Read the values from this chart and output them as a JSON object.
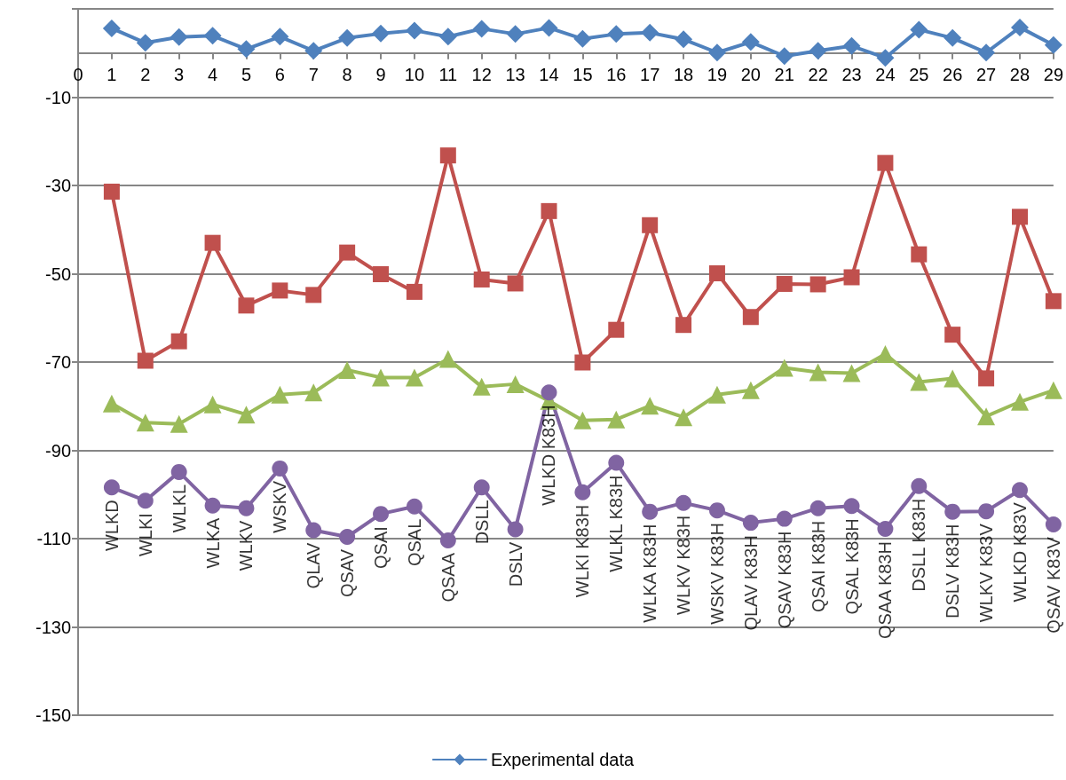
{
  "chart_data": {
    "type": "line",
    "x": [
      1,
      2,
      3,
      4,
      5,
      6,
      7,
      8,
      9,
      10,
      11,
      12,
      13,
      14,
      15,
      16,
      17,
      18,
      19,
      20,
      21,
      22,
      23,
      24,
      25,
      26,
      27,
      28,
      29
    ],
    "series": [
      {
        "name": "Experimental data",
        "color": "#4f81bd",
        "marker": "diamond",
        "values": [
          5.6,
          2.3,
          3.6,
          3.9,
          0.9,
          3.7,
          0.5,
          3.4,
          4.4,
          5.1,
          3.7,
          5.5,
          4.3,
          5.7,
          3.2,
          4.3,
          4.6,
          3.1,
          0.1,
          2.5,
          -0.7,
          0.5,
          1.6,
          -1.1,
          5.3,
          3.4,
          0.1,
          5.8,
          1.8
        ]
      },
      {
        "color": "#c0504d",
        "marker": "square",
        "values": [
          -31.4,
          -69.7,
          -65.3,
          -43.0,
          -57.2,
          -53.8,
          -54.8,
          -45.2,
          -50.1,
          -54.1,
          -23.2,
          -51.3,
          -52.2,
          -35.8,
          -70.1,
          -62.7,
          -39.0,
          -61.6,
          -49.9,
          -59.8,
          -52.3,
          -52.4,
          -50.8,
          -24.9,
          -45.6,
          -63.8,
          -73.7,
          -37.1,
          -56.2
        ]
      },
      {
        "color": "#9bbb59",
        "marker": "triangle",
        "values": [
          -79.4,
          -83.7,
          -84.0,
          -79.6,
          -81.9,
          -77.4,
          -76.9,
          -71.8,
          -73.5,
          -73.5,
          -69.3,
          -75.6,
          -75.0,
          -78.8,
          -83.2,
          -83.0,
          -79.9,
          -82.5,
          -77.4,
          -76.4,
          -71.3,
          -72.3,
          -72.5,
          -68.2,
          -74.5,
          -73.7,
          -82.3,
          -79.0,
          -76.4
        ]
      },
      {
        "color": "#8064a2",
        "marker": "circle",
        "values": [
          -98.4,
          -101.4,
          -94.9,
          -102.5,
          -103.1,
          -94.1,
          -108.1,
          -109.6,
          -104.4,
          -102.7,
          -110.4,
          -98.4,
          -107.9,
          -76.9,
          -99.5,
          -92.8,
          -103.9,
          -101.9,
          -103.6,
          -106.4,
          -105.5,
          -103.1,
          -102.6,
          -107.8,
          -98.1,
          -103.9,
          -103.8,
          -99.0,
          -106.8
        ]
      }
    ],
    "annotations": [
      {
        "text": "WLKD",
        "x": 1,
        "y": -98.4
      },
      {
        "text": "WLKI",
        "x": 2,
        "y": -101.4
      },
      {
        "text": "WLKL",
        "x": 3,
        "y": -94.9
      },
      {
        "text": "WLKA",
        "x": 4,
        "y": -102.5
      },
      {
        "text": "WLKV",
        "x": 5,
        "y": -103.1
      },
      {
        "text": "WSKV",
        "x": 6,
        "y": -94.1
      },
      {
        "text": "QLAV",
        "x": 7,
        "y": -108.1
      },
      {
        "text": "QSAV",
        "x": 8,
        "y": -109.6
      },
      {
        "text": "QSAI",
        "x": 9,
        "y": -104.4
      },
      {
        "text": "QSAL",
        "x": 10,
        "y": -102.7
      },
      {
        "text": "QSAA",
        "x": 11,
        "y": -110.4
      },
      {
        "text": "DSLL",
        "x": 12,
        "y": -98.4
      },
      {
        "text": "DSLV",
        "x": 13,
        "y": -107.9
      },
      {
        "text": "WLKD K83H",
        "x": 14,
        "y": -76.9
      },
      {
        "text": "WLKI K83H",
        "x": 15,
        "y": -99.5
      },
      {
        "text": "WLKL K83H",
        "x": 16,
        "y": -92.8
      },
      {
        "text": "WLKA K83H",
        "x": 17,
        "y": -103.9
      },
      {
        "text": "WLKV K83H",
        "x": 18,
        "y": -101.9
      },
      {
        "text": "WSKV K83H",
        "x": 19,
        "y": -103.6
      },
      {
        "text": "QLAV K83H",
        "x": 20,
        "y": -106.4
      },
      {
        "text": "QSAV K83H",
        "x": 21,
        "y": -105.5
      },
      {
        "text": "QSAI K83H",
        "x": 22,
        "y": -103.1
      },
      {
        "text": "QSAL K83H",
        "x": 23,
        "y": -102.6
      },
      {
        "text": "QSAA K83H",
        "x": 24,
        "y": -107.8
      },
      {
        "text": "DSLL K83H",
        "x": 25,
        "y": -98.1
      },
      {
        "text": "DSLV K83H",
        "x": 26,
        "y": -103.9
      },
      {
        "text": "WLKV K83V",
        "x": 27,
        "y": -103.8
      },
      {
        "text": "WLKD K83V",
        "x": 28,
        "y": -99.0
      },
      {
        "text": "QSAV K83V",
        "x": 29,
        "y": -106.8
      }
    ],
    "xlim": [
      0,
      29
    ],
    "xticks": [
      0,
      1,
      2,
      3,
      4,
      5,
      6,
      7,
      8,
      9,
      10,
      11,
      12,
      13,
      14,
      15,
      16,
      17,
      18,
      19,
      20,
      21,
      22,
      23,
      24,
      25,
      26,
      27,
      28,
      29
    ],
    "ylim": [
      -150,
      10
    ],
    "yticks": [
      -150,
      -130,
      -110,
      -90,
      -70,
      -50,
      -30,
      -10,
      {
        "value": 10,
        "label": null
      }
    ],
    "grid": "y",
    "legend": "bottom",
    "line_style": "solid"
  }
}
